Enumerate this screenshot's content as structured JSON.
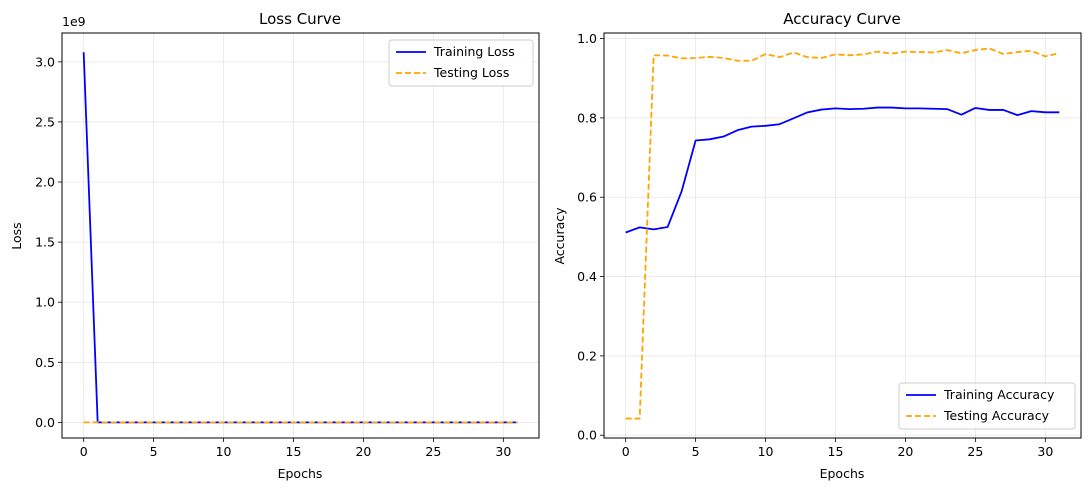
{
  "chart_data": [
    {
      "type": "line",
      "title": "Loss Curve",
      "xlabel": "Epochs",
      "ylabel": "Loss",
      "offset_label": "1e9",
      "xlim": [
        -1.55,
        32.55
      ],
      "ylim": [
        -0.13,
        3.24
      ],
      "xticks": [
        0,
        5,
        10,
        15,
        20,
        25,
        30
      ],
      "xtick_labels": [
        "0",
        "5",
        "10",
        "15",
        "20",
        "25",
        "30"
      ],
      "yticks": [
        0,
        0.5,
        1.0,
        1.5,
        2.0,
        2.5,
        3.0
      ],
      "ytick_labels": [
        "0.0",
        "0.5",
        "1.0",
        "1.5",
        "2.0",
        "2.5",
        "3.0"
      ],
      "grid": true,
      "legend_position": "upper-right",
      "x": [
        0,
        1,
        2,
        3,
        4,
        5,
        6,
        7,
        8,
        9,
        10,
        11,
        12,
        13,
        14,
        15,
        16,
        17,
        18,
        19,
        20,
        21,
        22,
        23,
        24,
        25,
        26,
        27,
        28,
        29,
        30,
        31
      ],
      "series": [
        {
          "name": "Training Loss",
          "color": "#0000ff",
          "style": "solid",
          "values": [
            3.08,
            0,
            0,
            0,
            0,
            0,
            0,
            0,
            0,
            0,
            0,
            0,
            0,
            0,
            0,
            0,
            0,
            0,
            0,
            0,
            0,
            0,
            0,
            0,
            0,
            0,
            0,
            0,
            0,
            0,
            0,
            0
          ]
        },
        {
          "name": "Testing Loss",
          "color": "#ffa500",
          "style": "dashed",
          "values": [
            0,
            0,
            0,
            0,
            0,
            0,
            0,
            0,
            0,
            0,
            0,
            0,
            0,
            0,
            0,
            0,
            0,
            0,
            0,
            0,
            0,
            0,
            0,
            0,
            0,
            0,
            0,
            0,
            0,
            0,
            0,
            0
          ]
        }
      ]
    },
    {
      "type": "line",
      "title": "Accuracy Curve",
      "xlabel": "Epochs",
      "ylabel": "Accuracy",
      "xlim": [
        -1.55,
        32.55
      ],
      "ylim": [
        -0.007,
        1.014
      ],
      "xticks": [
        0,
        5,
        10,
        15,
        20,
        25,
        30
      ],
      "xtick_labels": [
        "0",
        "5",
        "10",
        "15",
        "20",
        "25",
        "30"
      ],
      "yticks": [
        0,
        0.2,
        0.4,
        0.6,
        0.8,
        1.0
      ],
      "ytick_labels": [
        "0.0",
        "0.2",
        "0.4",
        "0.6",
        "0.8",
        "1.0"
      ],
      "grid": true,
      "legend_position": "lower-right",
      "x": [
        0,
        1,
        2,
        3,
        4,
        5,
        6,
        7,
        8,
        9,
        10,
        11,
        12,
        13,
        14,
        15,
        16,
        17,
        18,
        19,
        20,
        21,
        22,
        23,
        24,
        25,
        26,
        27,
        28,
        29,
        30,
        31
      ],
      "series": [
        {
          "name": "Training Accuracy",
          "color": "#0000ff",
          "style": "solid",
          "values": [
            0.511,
            0.524,
            0.519,
            0.525,
            0.615,
            0.743,
            0.746,
            0.753,
            0.769,
            0.778,
            0.78,
            0.784,
            0.799,
            0.814,
            0.821,
            0.824,
            0.822,
            0.823,
            0.826,
            0.826,
            0.824,
            0.824,
            0.823,
            0.822,
            0.808,
            0.825,
            0.82,
            0.82,
            0.807,
            0.817,
            0.814,
            0.814
          ]
        },
        {
          "name": "Testing Accuracy",
          "color": "#ffa500",
          "style": "dashed",
          "values": [
            0.042,
            0.042,
            0.958,
            0.957,
            0.95,
            0.951,
            0.954,
            0.951,
            0.944,
            0.944,
            0.961,
            0.953,
            0.965,
            0.953,
            0.951,
            0.96,
            0.958,
            0.96,
            0.967,
            0.962,
            0.967,
            0.966,
            0.965,
            0.971,
            0.963,
            0.971,
            0.975,
            0.961,
            0.966,
            0.969,
            0.955,
            0.963
          ]
        }
      ]
    }
  ]
}
